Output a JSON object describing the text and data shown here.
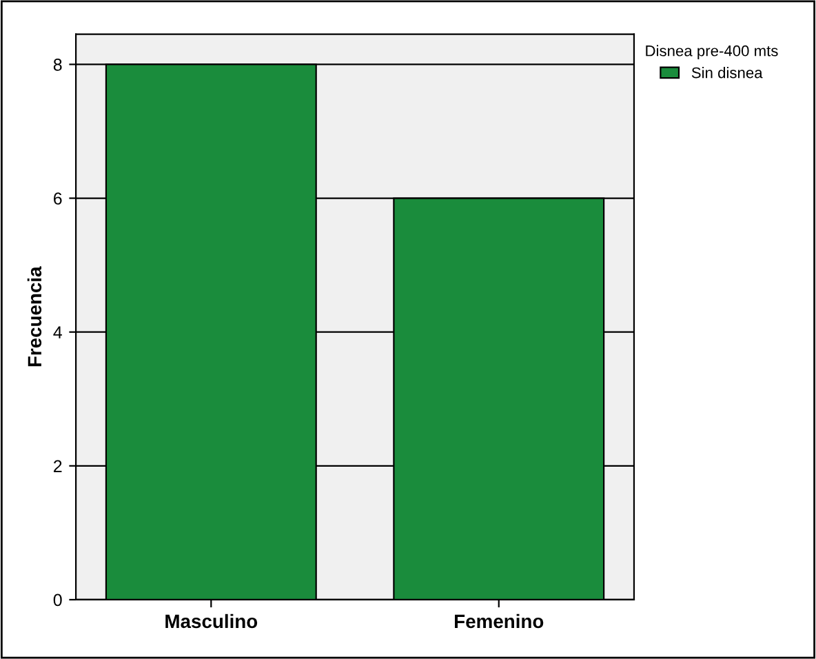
{
  "chart_data": {
    "type": "bar",
    "ylabel": "Frecuencia",
    "legend_title": "Disnea pre-400 mts",
    "categories": [
      "Masculino",
      "Femenino"
    ],
    "series": [
      {
        "name": "Sin disnea",
        "color": "#1a8c3c",
        "values": [
          8,
          6
        ]
      }
    ],
    "ylim": [
      0,
      8.45
    ],
    "yticks": [
      0,
      2,
      4,
      6,
      8
    ],
    "grid": "y",
    "legend": "top right"
  }
}
